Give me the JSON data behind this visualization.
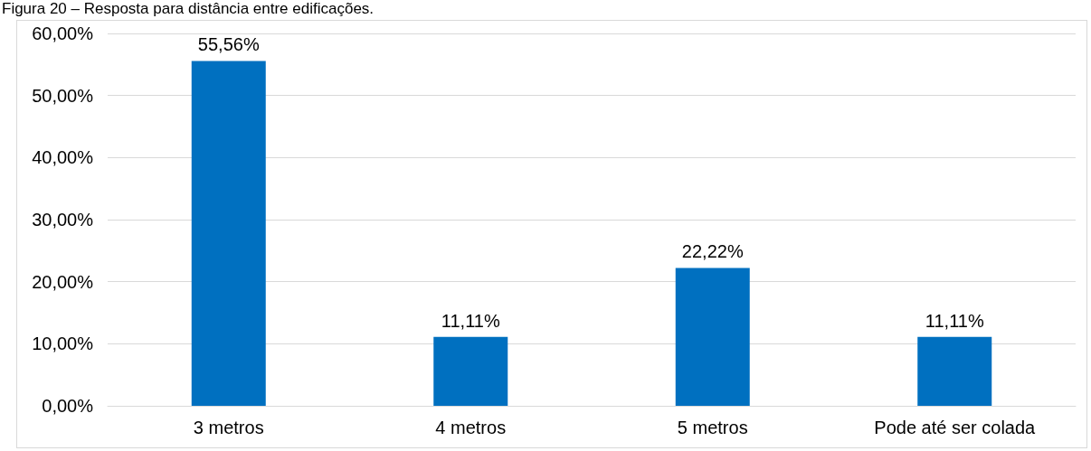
{
  "chart_data": {
    "type": "bar",
    "title": "Figura 20 – Resposta para distância entre edificações.",
    "categories": [
      "3 metros",
      "4 metros",
      "5 metros",
      "Pode até ser colada"
    ],
    "values": [
      55.56,
      11.11,
      22.22,
      11.11
    ],
    "value_labels": [
      "55,56%",
      "11,11%",
      "22,22%",
      "11,11%"
    ],
    "color": "#0070c0",
    "ylim": [
      0,
      60
    ],
    "yticks": [
      {
        "value": 0,
        "label": "0,00%"
      },
      {
        "value": 10,
        "label": "10,00%"
      },
      {
        "value": 20,
        "label": "20,00%"
      },
      {
        "value": 30,
        "label": "30,00%"
      },
      {
        "value": 40,
        "label": "40,00%"
      },
      {
        "value": 50,
        "label": "50,00%"
      },
      {
        "value": 60,
        "label": "60,00%"
      }
    ],
    "grid": true
  }
}
